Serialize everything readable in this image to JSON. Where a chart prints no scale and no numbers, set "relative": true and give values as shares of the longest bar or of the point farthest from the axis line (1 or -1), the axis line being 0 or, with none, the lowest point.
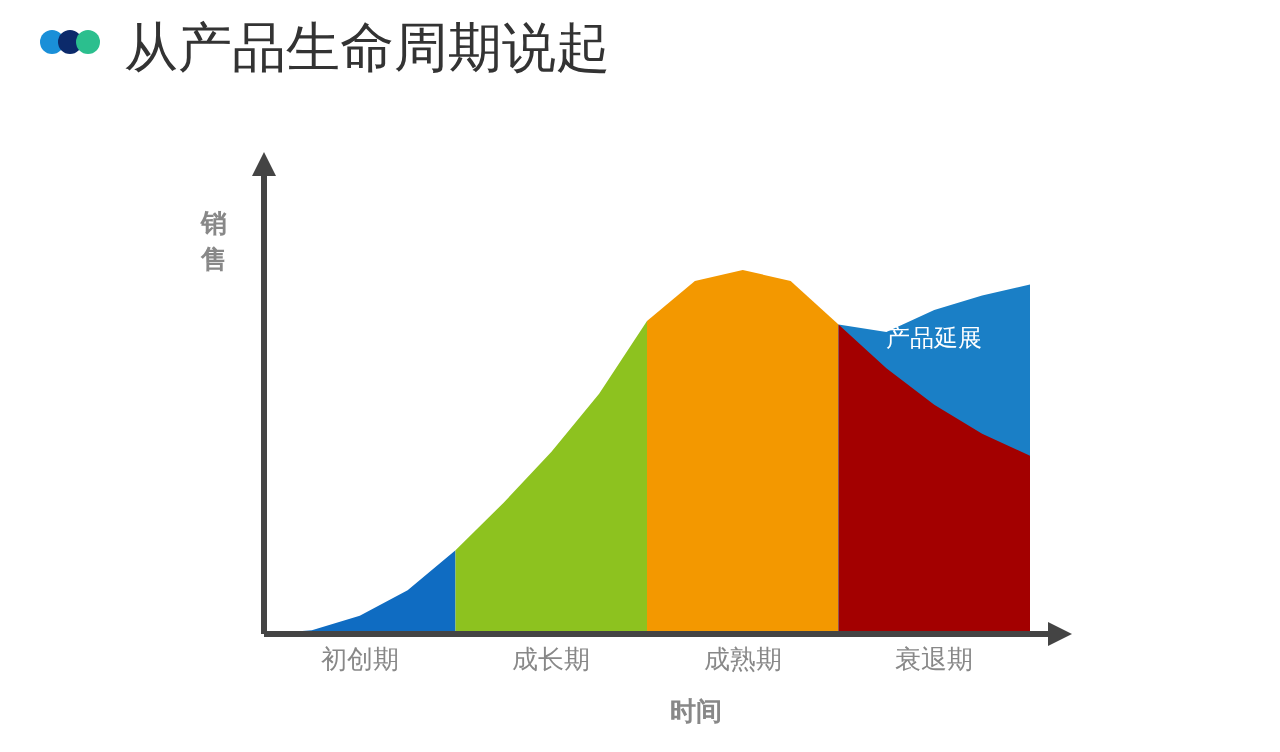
{
  "chart_data": {
    "type": "area",
    "title": "从产品生命周期说起",
    "xlabel": "时间",
    "ylabel": "销售",
    "relative": true,
    "categories": [
      null,
      null,
      null,
      null,
      null,
      null,
      null,
      null,
      null,
      null,
      null,
      null,
      null,
      null,
      null,
      null,
      null
    ],
    "annotations": [
      "初创期",
      "成长期",
      "成熟期",
      "衰退期"
    ],
    "series": [
      {
        "color": "#0f6cc2",
        "values": [
          0,
          0.01,
          0.05,
          0.12,
          0.23,
          null,
          null,
          null,
          null,
          null,
          null,
          null,
          null,
          null,
          null,
          null,
          null
        ]
      },
      {
        "color": "#8dc21f",
        "values": [
          null,
          null,
          null,
          null,
          0.23,
          0.36,
          0.5,
          0.66,
          0.86,
          null,
          null,
          null,
          null,
          null,
          null,
          null,
          null
        ]
      },
      {
        "color": "#f39800",
        "values": [
          null,
          null,
          null,
          null,
          null,
          null,
          null,
          null,
          0.86,
          0.97,
          1.0,
          0.97,
          0.85,
          null,
          null,
          null,
          null
        ]
      },
      {
        "name": "产品延展",
        "color": "#1a7fc6",
        "values": [
          null,
          null,
          null,
          null,
          null,
          null,
          null,
          null,
          null,
          null,
          null,
          null,
          0.85,
          0.83,
          0.89,
          0.93,
          0.96
        ]
      },
      {
        "color": "#a30000",
        "values": [
          null,
          null,
          null,
          null,
          null,
          null,
          null,
          null,
          null,
          null,
          null,
          null,
          0.85,
          0.73,
          0.63,
          0.55,
          0.49
        ]
      }
    ]
  }
}
